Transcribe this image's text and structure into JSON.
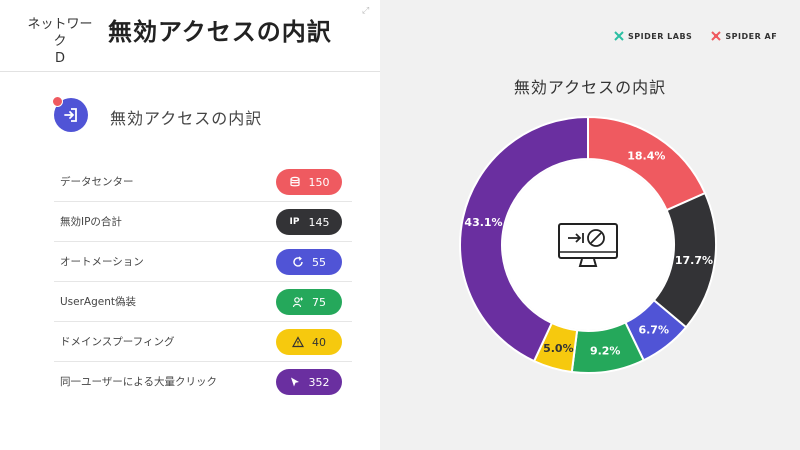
{
  "header": {
    "network_label": "ネットワーク\nD",
    "page_title": "無効アクセスの内訳"
  },
  "section": {
    "title": "無効アクセスの内訳",
    "icon": "sign-in-icon"
  },
  "metrics": [
    {
      "label": "データセンター",
      "value": "150",
      "color": "#ef5a60",
      "icon": "database-icon",
      "icon_text": ""
    },
    {
      "label": "無効IPの合計",
      "value": "145",
      "color": "#333336",
      "icon": "ip-icon",
      "icon_text": "IP"
    },
    {
      "label": "オートメーション",
      "value": "55",
      "color": "#5054d6",
      "icon": "refresh-icon",
      "icon_text": ""
    },
    {
      "label": "UserAgent偽装",
      "value": "75",
      "color": "#25a85b",
      "icon": "user-mask-icon",
      "icon_text": ""
    },
    {
      "label": "ドメインスプーフィング",
      "value": "40",
      "color": "#f6c90e",
      "icon": "warning-icon",
      "icon_text": ""
    },
    {
      "label": "同一ユーザーによる大量クリック",
      "value": "352",
      "color": "#6a2fa0",
      "icon": "cursor-icon",
      "icon_text": ""
    }
  ],
  "logos": [
    {
      "name": "SPIDER LABS",
      "color": "#2bbfa3"
    },
    {
      "name": "SPIDER AF",
      "color": "#ef5a60"
    }
  ],
  "chart_data": {
    "type": "pie",
    "title": "無効アクセスの内訳",
    "labels": [
      "データセンター",
      "無効IPの合計",
      "オートメーション",
      "UserAgent偽装",
      "ドメインスプーフィング",
      "同一ユーザーによる大量クリック"
    ],
    "values": [
      150,
      145,
      55,
      75,
      40,
      352
    ],
    "percent_labels": [
      "18.4%",
      "17.7%",
      "6.7%",
      "9.2%",
      "5.0%",
      "43.1%"
    ],
    "colors": [
      "#ef5a60",
      "#333336",
      "#5054d6",
      "#25a85b",
      "#f6c90e",
      "#6a2fa0"
    ],
    "style": "donut",
    "center_icon": "blocked-monitor-icon"
  }
}
